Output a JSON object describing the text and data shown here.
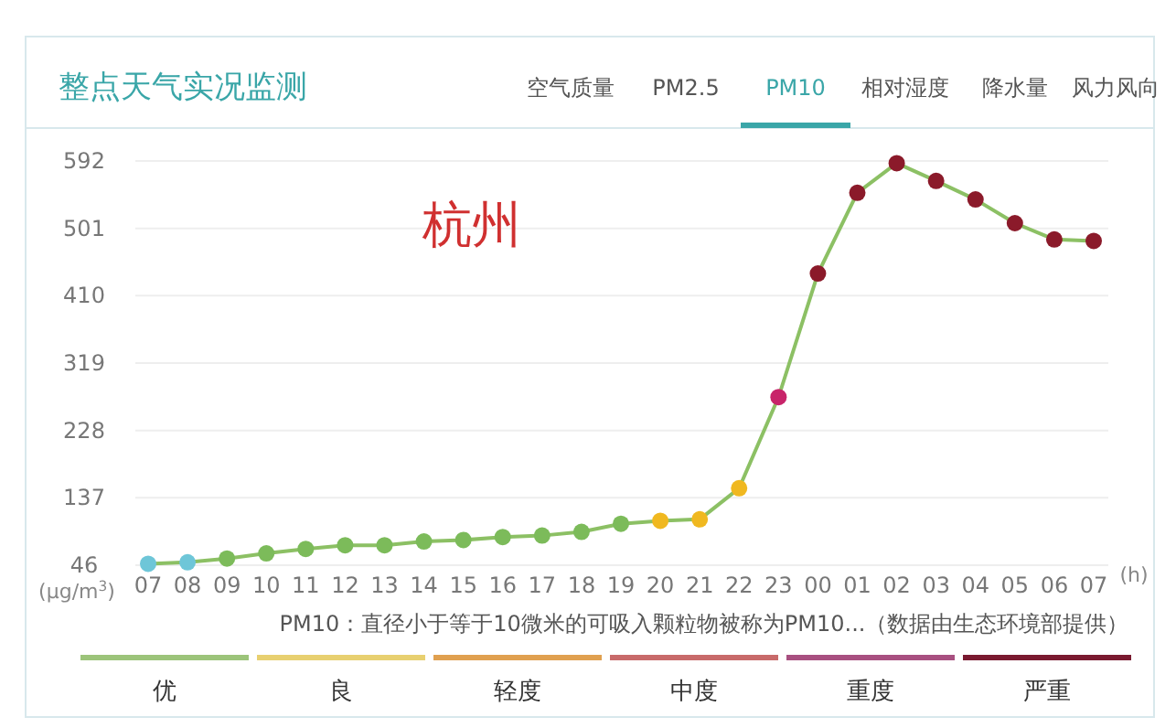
{
  "chart_data": {
    "type": "line",
    "title": "整点天气实况监测",
    "xlabel": "(h)",
    "ylabel": "(μg/m$^{3}$)",
    "categories": [
      "07",
      "08",
      "09",
      "10",
      "11",
      "12",
      "13",
      "14",
      "15",
      "16",
      "17",
      "18",
      "19",
      "20",
      "21",
      "22",
      "23",
      "00",
      "01",
      "02",
      "03",
      "04",
      "05",
      "06",
      "07"
    ],
    "values": [
      48,
      50,
      55,
      62,
      68,
      73,
      73,
      78,
      80,
      84,
      86,
      91,
      102,
      106,
      108,
      150,
      273,
      440,
      549,
      589,
      565,
      540,
      508,
      486,
      484
    ],
    "color": "#8cc064",
    "colors": [
      "#6ec6d8",
      "#6ec6d8",
      "#7cbb5a",
      "#7cbb5a",
      "#7cbb5a",
      "#7cbb5a",
      "#7cbb5a",
      "#7cbb5a",
      "#7cbb5a",
      "#7cbb5a",
      "#7cbb5a",
      "#7cbb5a",
      "#7cbb5a",
      "#f0b820",
      "#f0b820",
      "#f0b820",
      "#c8246a",
      "#8b1a2a",
      "#8b1a2a",
      "#8b1a2a",
      "#8b1a2a",
      "#8b1a2a",
      "#8b1a2a",
      "#8b1a2a",
      "#8b1a2a"
    ],
    "ylim": [
      46,
      592
    ],
    "yticks": [
      46,
      137,
      228,
      319,
      410,
      501,
      592
    ],
    "grid": "y",
    "marker": "circle",
    "annotations": [
      "空气质量",
      "PM2.5",
      "PM10",
      "相对湿度",
      "降水量",
      "风力风向",
      "杭州",
      "PM10：直径小于等于10微米的可吸入颗粒物被称为PM10...（数据由生态环境部提供）",
      "优",
      "良",
      "轻度",
      "中度",
      "重度",
      "严重"
    ]
  }
}
